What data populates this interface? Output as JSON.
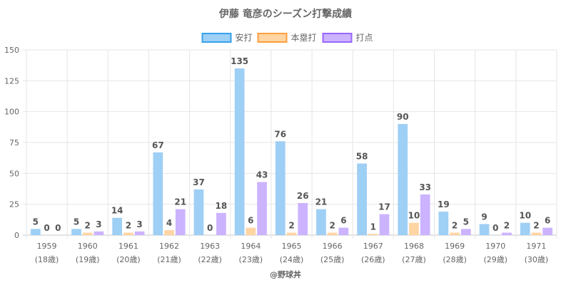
{
  "chart_data": {
    "type": "bar",
    "title": "伊藤 竜彦のシーズン打撃成績",
    "categories": [
      "1959",
      "1960",
      "1961",
      "1962",
      "1963",
      "1964",
      "1965",
      "1966",
      "1967",
      "1968",
      "1969",
      "1970",
      "1971"
    ],
    "category_sublabels": [
      "(18歳)",
      "(19歳)",
      "(20歳)",
      "(21歳)",
      "(22歳)",
      "(23歳)",
      "(24歳)",
      "(25歳)",
      "(26歳)",
      "(27歳)",
      "(28歳)",
      "(29歳)",
      "(30歳)"
    ],
    "series": [
      {
        "name": "安打",
        "color": "#9ecff5",
        "border": "#36a2eb",
        "values": [
          5,
          5,
          14,
          67,
          37,
          135,
          76,
          21,
          58,
          90,
          19,
          9,
          10
        ]
      },
      {
        "name": "本塁打",
        "color": "#ffd5a3",
        "border": "#ff9f40",
        "values": [
          0,
          2,
          2,
          4,
          0,
          6,
          2,
          2,
          1,
          10,
          2,
          0,
          2
        ]
      },
      {
        "name": "打点",
        "color": "#ccb3ff",
        "border": "#9966ff",
        "values": [
          0,
          3,
          3,
          21,
          18,
          43,
          26,
          6,
          17,
          33,
          5,
          2,
          6
        ]
      }
    ],
    "y_ticks": [
      "0",
      "25",
      "50",
      "75",
      "100",
      "125",
      "150"
    ],
    "ylim": [
      0,
      150
    ],
    "credit": "@野球丼"
  }
}
